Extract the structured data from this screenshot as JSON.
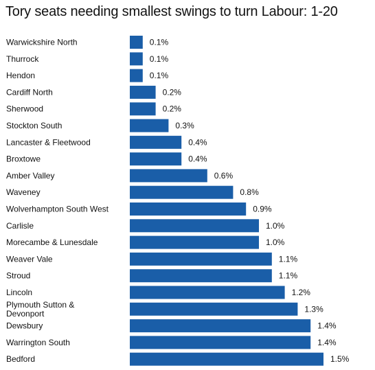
{
  "chart_data": {
    "type": "bar",
    "orientation": "horizontal",
    "title": "Tory seats needing smallest swings to turn Labour: 1-20",
    "xlabel": "",
    "ylabel": "",
    "grid": false,
    "xlim": [
      0,
      1.5
    ],
    "bar_color": "#1a5ea8",
    "value_suffix": "%",
    "categories": [
      "Warwickshire North",
      "Thurrock",
      "Hendon",
      "Cardiff North",
      "Sherwood",
      "Stockton South",
      "Lancaster & Fleetwood",
      "Broxtowe",
      "Amber Valley",
      "Waveney",
      "Wolverhampton South West",
      "Carlisle",
      "Morecambe & Lunesdale",
      "Weaver Vale",
      "Stroud",
      "Lincoln",
      "Plymouth Sutton & Devonport",
      "Dewsbury",
      "Warrington South",
      "Bedford"
    ],
    "values": [
      0.1,
      0.1,
      0.1,
      0.2,
      0.2,
      0.3,
      0.4,
      0.4,
      0.6,
      0.8,
      0.9,
      1.0,
      1.0,
      1.1,
      1.1,
      1.2,
      1.3,
      1.4,
      1.4,
      1.5
    ],
    "value_labels": [
      "0.1%",
      "0.1%",
      "0.1%",
      "0.2%",
      "0.2%",
      "0.3%",
      "0.4%",
      "0.4%",
      "0.6%",
      "0.8%",
      "0.9%",
      "1.0%",
      "1.0%",
      "1.1%",
      "1.1%",
      "1.2%",
      "1.3%",
      "1.4%",
      "1.4%",
      "1.5%"
    ]
  }
}
